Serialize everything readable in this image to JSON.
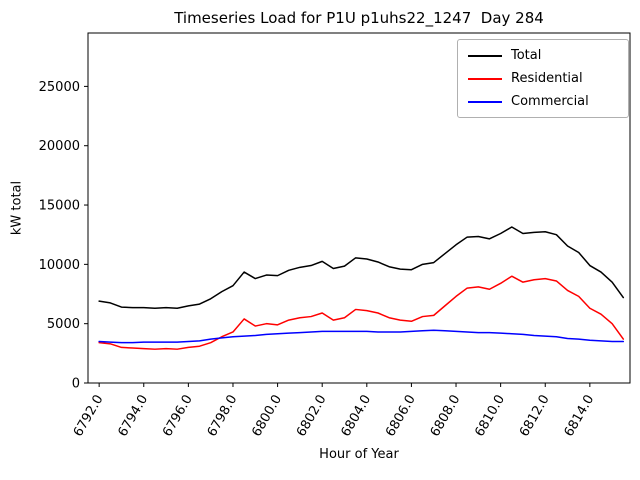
{
  "title": "Timeseries Load for P1U p1uhs22_1247  Day 284",
  "chart_data": {
    "type": "line",
    "title": "Timeseries Load for P1U p1uhs22_1247  Day 284",
    "xlabel": "Hour of Year",
    "ylabel": "kW total",
    "xlim": [
      6791.5,
      6815.8
    ],
    "ylim": [
      0,
      29500
    ],
    "grid": false,
    "legend_position": "upper right",
    "xticks": [
      6792,
      6794,
      6796,
      6798,
      6800,
      6802,
      6804,
      6806,
      6808,
      6810,
      6812,
      6814
    ],
    "xtick_labels": [
      "6792.0",
      "6794.0",
      "6796.0",
      "6798.0",
      "6800.0",
      "6802.0",
      "6804.0",
      "6806.0",
      "6808.0",
      "6810.0",
      "6812.0",
      "6814.0"
    ],
    "yticks": [
      0,
      5000,
      10000,
      15000,
      20000,
      25000
    ],
    "ytick_labels": [
      "0",
      "5000",
      "10000",
      "15000",
      "20000",
      "25000"
    ],
    "x": [
      6792.0,
      6792.5,
      6793.0,
      6793.5,
      6794.0,
      6794.5,
      6795.0,
      6795.5,
      6796.0,
      6796.5,
      6797.0,
      6797.5,
      6798.0,
      6798.5,
      6799.0,
      6799.5,
      6800.0,
      6800.5,
      6801.0,
      6801.5,
      6802.0,
      6802.5,
      6803.0,
      6803.5,
      6804.0,
      6804.5,
      6805.0,
      6805.5,
      6806.0,
      6806.5,
      6807.0,
      6807.5,
      6808.0,
      6808.5,
      6809.0,
      6809.5,
      6810.0,
      6810.5,
      6811.0,
      6811.5,
      6812.0,
      6812.5,
      6813.0,
      6813.5,
      6814.0,
      6814.5,
      6815.0,
      6815.5
    ],
    "series": [
      {
        "name": "Total",
        "color": "#000000",
        "values": [
          6900,
          6750,
          6400,
          6350,
          6350,
          6300,
          6350,
          6300,
          6500,
          6650,
          7100,
          7700,
          8200,
          9350,
          8800,
          9100,
          9050,
          9500,
          9750,
          9900,
          10250,
          9650,
          9850,
          10550,
          10450,
          10200,
          9800,
          9600,
          9550,
          10000,
          10150,
          10900,
          11650,
          12300,
          12350,
          12150,
          12600,
          13150,
          12600,
          12700,
          12750,
          12500,
          11550,
          11000,
          9900,
          9350,
          8500,
          7200
        ]
      },
      {
        "name": "Residential",
        "color": "#ff0000",
        "values": [
          3400,
          3300,
          3000,
          2950,
          2900,
          2850,
          2900,
          2850,
          3000,
          3100,
          3400,
          3900,
          4300,
          5400,
          4800,
          5000,
          4900,
          5300,
          5500,
          5600,
          5900,
          5300,
          5500,
          6200,
          6100,
          5900,
          5500,
          5300,
          5200,
          5600,
          5700,
          6500,
          7300,
          8000,
          8100,
          7900,
          8400,
          9000,
          8500,
          8700,
          8800,
          8600,
          7800,
          7300,
          6300,
          5800,
          5000,
          3700
        ]
      },
      {
        "name": "Commercial",
        "color": "#0000ff",
        "values": [
          3500,
          3450,
          3400,
          3400,
          3450,
          3450,
          3450,
          3450,
          3500,
          3550,
          3700,
          3800,
          3900,
          3950,
          4000,
          4100,
          4150,
          4200,
          4250,
          4300,
          4350,
          4350,
          4350,
          4350,
          4350,
          4300,
          4300,
          4300,
          4350,
          4400,
          4450,
          4400,
          4350,
          4300,
          4250,
          4250,
          4200,
          4150,
          4100,
          4000,
          3950,
          3900,
          3750,
          3700,
          3600,
          3550,
          3500,
          3500
        ]
      }
    ]
  }
}
